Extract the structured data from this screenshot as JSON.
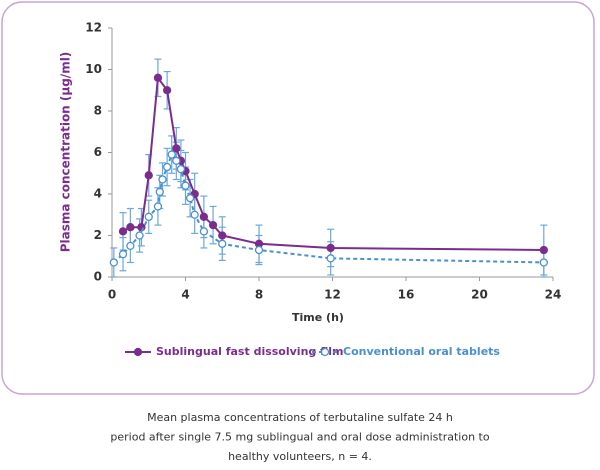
{
  "chart_data": {
    "type": "line",
    "x_label": "Time (h)",
    "y_label": "Plasma concentration (µg/ml)",
    "xlim": [
      0,
      24
    ],
    "xticks": [
      0,
      4,
      8,
      12,
      16,
      20,
      24
    ],
    "ylim": [
      0,
      12
    ],
    "yticks": [
      0,
      2,
      4,
      6,
      8,
      10,
      12
    ],
    "series": [
      {
        "name": "Sublingual fast dissolving film",
        "color": "#7b2d8e",
        "dashed": false,
        "filled": true,
        "x": [
          0.6,
          1.0,
          1.6,
          2.0,
          2.5,
          3.0,
          3.5,
          3.75,
          4.0,
          4.5,
          5.0,
          5.5,
          6.0,
          8.0,
          11.9,
          23.5
        ],
        "values": [
          2.2,
          2.4,
          2.4,
          4.9,
          9.6,
          9.0,
          6.2,
          5.6,
          5.1,
          4.0,
          2.9,
          2.5,
          2.0,
          1.6,
          1.4,
          1.3
        ],
        "errors": [
          0.9,
          0.9,
          0.9,
          1.0,
          0.9,
          0.9,
          1.0,
          1.0,
          0.9,
          1.0,
          1.0,
          0.9,
          0.9,
          0.9,
          0.9,
          1.2
        ]
      },
      {
        "name": "Conventional oral tablets",
        "color": "#4a90d0",
        "dashed": true,
        "filled": false,
        "x": [
          0.1,
          0.6,
          1.0,
          1.5,
          2.0,
          2.5,
          2.6,
          2.75,
          3.0,
          3.25,
          3.5,
          3.75,
          4.0,
          4.25,
          4.5,
          5.0,
          6.0,
          8.0,
          11.9,
          23.5
        ],
        "values": [
          0.7,
          1.1,
          1.5,
          2.0,
          2.9,
          3.4,
          4.1,
          4.7,
          5.3,
          5.9,
          5.6,
          5.2,
          4.4,
          3.8,
          3.0,
          2.2,
          1.6,
          1.3,
          0.9,
          0.7
        ],
        "errors": [
          0.7,
          0.8,
          0.8,
          0.8,
          0.8,
          0.9,
          0.8,
          0.8,
          0.9,
          0.9,
          0.9,
          0.9,
          0.9,
          0.9,
          0.9,
          0.8,
          0.8,
          0.7,
          0.8,
          0.7
        ]
      }
    ],
    "error_bar_color": "#6aa8dc",
    "caption": [
      "Mean plasma concentrations of terbutaline sulfate 24 h",
      "period after single 7.5 mg sublingual and oral dose administration to",
      "healthy volunteers, n = 4."
    ]
  }
}
